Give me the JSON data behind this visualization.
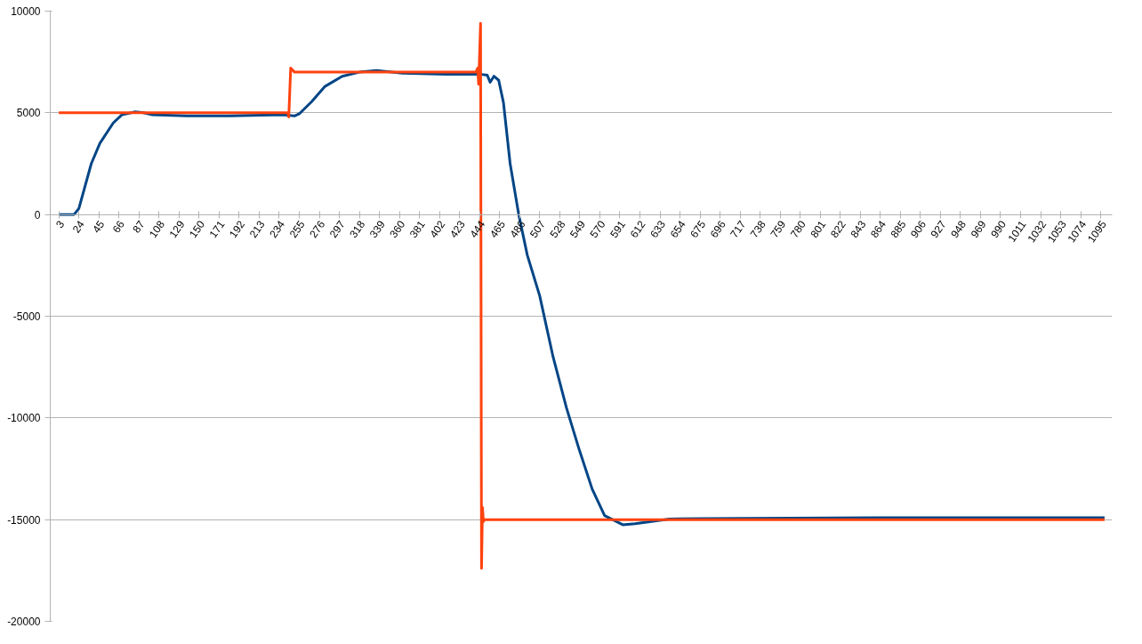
{
  "chart_data": {
    "type": "line",
    "xlim": [
      -6,
      1107
    ],
    "ylim": [
      -20000,
      10000
    ],
    "xticks": [
      3,
      24,
      45,
      66,
      87,
      108,
      129,
      150,
      171,
      192,
      213,
      234,
      255,
      276,
      297,
      318,
      339,
      360,
      381,
      402,
      423,
      444,
      465,
      486,
      507,
      528,
      549,
      570,
      591,
      612,
      633,
      654,
      675,
      696,
      717,
      738,
      759,
      780,
      801,
      822,
      843,
      864,
      885,
      906,
      927,
      948,
      969,
      990,
      1011,
      1032,
      1053,
      1074,
      1095
    ],
    "yticks": [
      -20000,
      -15000,
      -10000,
      -5000,
      0,
      5000,
      10000
    ],
    "grid": "y",
    "marker": "none",
    "line_style": "solid",
    "series": [
      {
        "color": "#004586",
        "x": [
          3,
          19,
          24,
          37,
          46,
          60,
          69,
          83,
          92,
          101,
          137,
          182,
          237,
          250,
          255,
          268,
          282,
          300,
          318,
          336,
          363,
          409,
          444,
          452,
          455,
          459,
          464,
          469,
          476,
          485,
          494,
          507,
          521,
          535,
          548,
          562,
          575,
          594,
          607,
          643,
          680,
          861,
          1099
        ],
        "values": [
          0,
          0,
          300,
          2500,
          3500,
          4500,
          4900,
          5050,
          5000,
          4900,
          4850,
          4850,
          4900,
          4850,
          4950,
          5550,
          6300,
          6800,
          7000,
          7080,
          6950,
          6900,
          6900,
          6850,
          6500,
          6800,
          6600,
          5500,
          2500,
          0,
          -2000,
          -4000,
          -7000,
          -9500,
          -11500,
          -13500,
          -14800,
          -15250,
          -15200,
          -14970,
          -14950,
          -14900,
          -14900
        ]
      },
      {
        "color": "#ff420e",
        "x": [
          3,
          243,
          244,
          246,
          250,
          440,
          442,
          443,
          445,
          446,
          447,
          448,
          449,
          1099
        ],
        "values": [
          5000,
          5000,
          4800,
          7200,
          7000,
          7000,
          7200,
          6400,
          9400,
          -17400,
          -14400,
          -15100,
          -15000,
          -15000
        ]
      }
    ]
  }
}
